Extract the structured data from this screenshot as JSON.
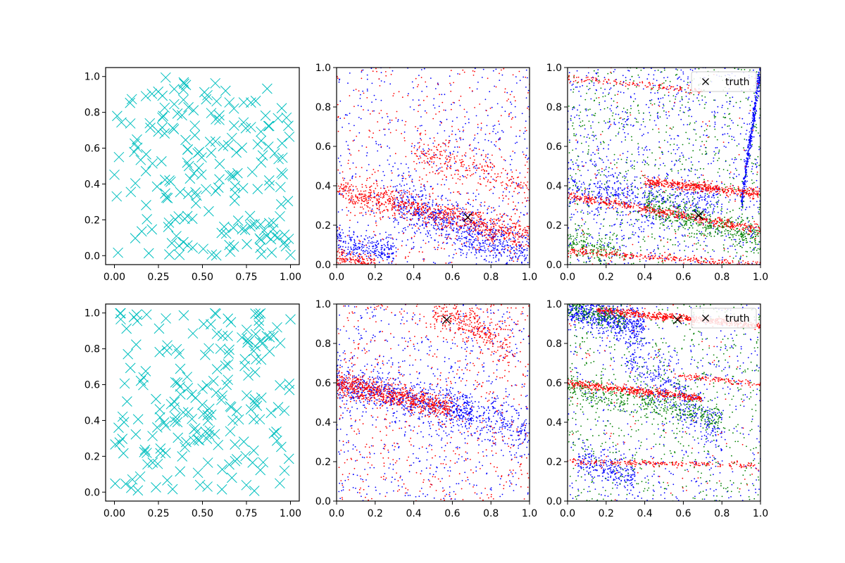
{
  "colors": {
    "cyan": "#00bfbf",
    "red": "#ff0000",
    "blue": "#0000ff",
    "green": "#008000",
    "truth": "#000000"
  },
  "chart_data": [
    {
      "type": "scatter",
      "id": "a1",
      "marker": "x",
      "xlim": [
        -0.05,
        1.05
      ],
      "ylim": [
        -0.05,
        1.05
      ],
      "xticks": [
        "0.00",
        "0.25",
        "0.50",
        "0.75",
        "1.00"
      ],
      "yticks": [
        "0.0",
        "0.2",
        "0.4",
        "0.6",
        "0.8",
        "1.0"
      ],
      "xtick_values": [
        0,
        0.25,
        0.5,
        0.75,
        1.0
      ],
      "ytick_values": [
        0,
        0.2,
        0.4,
        0.6,
        0.8,
        1.0
      ],
      "series": [
        {
          "name": "samples",
          "color": "cyan",
          "n": 200,
          "distribution": "uniform"
        }
      ]
    },
    {
      "type": "scatter",
      "id": "a2",
      "marker": "dot",
      "xlim": [
        0,
        1
      ],
      "ylim": [
        0,
        1
      ],
      "xticks": [
        "0.0",
        "0.2",
        "0.4",
        "0.6",
        "0.8",
        "1.0"
      ],
      "yticks": [
        "0.0",
        "0.2",
        "0.4",
        "0.6",
        "0.8",
        "1.0"
      ],
      "xtick_values": [
        0,
        0.2,
        0.4,
        0.6,
        0.8,
        1.0
      ],
      "ytick_values": [
        0,
        0.2,
        0.4,
        0.6,
        0.8,
        1.0
      ],
      "truth": {
        "x": 0.68,
        "y": 0.24
      },
      "series": [
        {
          "name": "blue",
          "color": "blue",
          "n": 1600,
          "bands": [
            {
              "x0": 0.3,
              "x1": 1.0,
              "y0": 0.32,
              "y1": 0.05,
              "spread": 0.06,
              "w": 0.5
            },
            {
              "x0": 0.0,
              "x1": 0.3,
              "y0": 0.12,
              "y1": 0.05,
              "spread": 0.04,
              "w": 0.15
            }
          ],
          "uniform": 0.35
        },
        {
          "name": "red",
          "color": "red",
          "n": 1600,
          "bands": [
            {
              "x0": 0.0,
              "x1": 1.0,
              "y0": 0.38,
              "y1": 0.15,
              "spread": 0.035,
              "w": 0.55
            },
            {
              "x0": 0.4,
              "x1": 1.0,
              "y0": 0.58,
              "y1": 0.38,
              "spread": 0.05,
              "w": 0.15
            },
            {
              "x0": 0.0,
              "x1": 0.2,
              "y0": 0.04,
              "y1": 0.0,
              "spread": 0.02,
              "w": 0.07
            }
          ],
          "uniform": 0.23
        }
      ]
    },
    {
      "type": "scatter",
      "id": "a3",
      "marker": "dot",
      "xlim": [
        0,
        1
      ],
      "ylim": [
        0,
        1
      ],
      "xticks": [
        "0.0",
        "0.2",
        "0.4",
        "0.6",
        "0.8",
        "1.0"
      ],
      "yticks": [
        "0.0",
        "0.2",
        "0.4",
        "0.6",
        "0.8",
        "1.0"
      ],
      "xtick_values": [
        0,
        0.2,
        0.4,
        0.6,
        0.8,
        1.0
      ],
      "ytick_values": [
        0,
        0.2,
        0.4,
        0.6,
        0.8,
        1.0
      ],
      "truth": {
        "x": 0.68,
        "y": 0.25
      },
      "legend": {
        "label": "truth",
        "placement": "top-right"
      },
      "series": [
        {
          "name": "blue",
          "color": "blue",
          "n": 1700,
          "bands": [
            {
              "x0": 0.0,
              "x1": 0.8,
              "y0": 0.38,
              "y1": 0.3,
              "spread": 0.05,
              "w": 0.25
            },
            {
              "x0": 0.9,
              "x1": 1.0,
              "y0": 0.3,
              "y1": 1.0,
              "spread": 0.03,
              "w": 0.2
            }
          ],
          "uniform": 0.55
        },
        {
          "name": "green",
          "color": "green",
          "n": 1300,
          "bands": [
            {
              "x0": 0.4,
              "x1": 1.0,
              "y0": 0.3,
              "y1": 0.13,
              "spread": 0.04,
              "w": 0.35
            },
            {
              "x0": 0.0,
              "x1": 0.3,
              "y0": 0.12,
              "y1": 0.05,
              "spread": 0.04,
              "w": 0.15
            }
          ],
          "uniform": 0.5
        },
        {
          "name": "red",
          "color": "red",
          "n": 1400,
          "bands": [
            {
              "x0": 0.0,
              "x1": 1.0,
              "y0": 0.35,
              "y1": 0.18,
              "spread": 0.012,
              "w": 0.32
            },
            {
              "x0": 0.4,
              "x1": 1.0,
              "y0": 0.42,
              "y1": 0.36,
              "spread": 0.012,
              "w": 0.3
            },
            {
              "x0": 0.0,
              "x1": 0.7,
              "y0": 0.95,
              "y1": 0.88,
              "spread": 0.01,
              "w": 0.1
            },
            {
              "x0": 0.0,
              "x1": 1.0,
              "y0": 0.07,
              "y1": 0.0,
              "spread": 0.01,
              "w": 0.2
            }
          ],
          "uniform": 0.08
        }
      ]
    },
    {
      "type": "scatter",
      "id": "b1",
      "marker": "x",
      "xlim": [
        -0.05,
        1.05
      ],
      "ylim": [
        -0.05,
        1.05
      ],
      "xticks": [
        "0.00",
        "0.25",
        "0.50",
        "0.75",
        "1.00"
      ],
      "yticks": [
        "0.0",
        "0.2",
        "0.4",
        "0.6",
        "0.8",
        "1.0"
      ],
      "xtick_values": [
        0,
        0.25,
        0.5,
        0.75,
        1.0
      ],
      "ytick_values": [
        0,
        0.2,
        0.4,
        0.6,
        0.8,
        1.0
      ],
      "series": [
        {
          "name": "samples",
          "color": "cyan",
          "n": 200,
          "distribution": "uniform"
        }
      ]
    },
    {
      "type": "scatter",
      "id": "b2",
      "marker": "dot",
      "xlim": [
        0,
        1
      ],
      "ylim": [
        0,
        1
      ],
      "xticks": [
        "0.0",
        "0.2",
        "0.4",
        "0.6",
        "0.8",
        "1.0"
      ],
      "yticks": [
        "0.0",
        "0.2",
        "0.4",
        "0.6",
        "0.8",
        "1.0"
      ],
      "xtick_values": [
        0,
        0.2,
        0.4,
        0.6,
        0.8,
        1.0
      ],
      "ytick_values": [
        0,
        0.2,
        0.4,
        0.6,
        0.8,
        1.0
      ],
      "truth": {
        "x": 0.57,
        "y": 0.92
      },
      "series": [
        {
          "name": "blue",
          "color": "blue",
          "n": 1600,
          "bands": [
            {
              "x0": 0.0,
              "x1": 0.7,
              "y0": 0.6,
              "y1": 0.45,
              "spread": 0.05,
              "w": 0.45
            },
            {
              "x0": 0.6,
              "x1": 1.0,
              "y0": 0.5,
              "y1": 0.35,
              "spread": 0.06,
              "w": 0.15
            }
          ],
          "uniform": 0.4
        },
        {
          "name": "red",
          "color": "red",
          "n": 1600,
          "bands": [
            {
              "x0": 0.0,
              "x1": 0.6,
              "y0": 0.6,
              "y1": 0.47,
              "spread": 0.03,
              "w": 0.45
            },
            {
              "x0": 0.5,
              "x1": 0.9,
              "y0": 0.98,
              "y1": 0.78,
              "spread": 0.05,
              "w": 0.2
            }
          ],
          "uniform": 0.35
        }
      ]
    },
    {
      "type": "scatter",
      "id": "b3",
      "marker": "dot",
      "xlim": [
        0,
        1
      ],
      "ylim": [
        0,
        1
      ],
      "xticks": [
        "0.0",
        "0.2",
        "0.4",
        "0.6",
        "0.8",
        "1.0"
      ],
      "yticks": [
        "0.0",
        "0.2",
        "0.4",
        "0.6",
        "0.8",
        "1.0"
      ],
      "xtick_values": [
        0,
        0.2,
        0.4,
        0.6,
        0.8,
        1.0
      ],
      "ytick_values": [
        0,
        0.2,
        0.4,
        0.6,
        0.8,
        1.0
      ],
      "truth": {
        "x": 0.57,
        "y": 0.92
      },
      "legend": {
        "label": "truth",
        "placement": "top-right"
      },
      "series": [
        {
          "name": "blue",
          "color": "blue",
          "n": 1700,
          "bands": [
            {
              "x0": 0.0,
              "x1": 0.4,
              "y0": 0.97,
              "y1": 0.88,
              "spread": 0.04,
              "w": 0.35
            },
            {
              "x0": 0.3,
              "x1": 0.8,
              "y0": 0.75,
              "y1": 0.35,
              "spread": 0.07,
              "w": 0.25
            },
            {
              "x0": 0.05,
              "x1": 0.35,
              "y0": 0.2,
              "y1": 0.12,
              "spread": 0.04,
              "w": 0.12
            }
          ],
          "uniform": 0.28
        },
        {
          "name": "green",
          "color": "green",
          "n": 1300,
          "bands": [
            {
              "x0": 0.0,
              "x1": 0.8,
              "y0": 0.58,
              "y1": 0.42,
              "spread": 0.04,
              "w": 0.35
            },
            {
              "x0": 0.0,
              "x1": 0.3,
              "y0": 0.98,
              "y1": 0.92,
              "spread": 0.03,
              "w": 0.15
            }
          ],
          "uniform": 0.5
        },
        {
          "name": "red",
          "color": "red",
          "n": 1400,
          "bands": [
            {
              "x0": 0.15,
              "x1": 1.0,
              "y0": 0.97,
              "y1": 0.89,
              "spread": 0.01,
              "w": 0.4
            },
            {
              "x0": 0.0,
              "x1": 0.7,
              "y0": 0.6,
              "y1": 0.52,
              "spread": 0.01,
              "w": 0.3
            },
            {
              "x0": 0.55,
              "x1": 1.0,
              "y0": 0.64,
              "y1": 0.59,
              "spread": 0.008,
              "w": 0.08
            },
            {
              "x0": 0.0,
              "x1": 1.0,
              "y0": 0.2,
              "y1": 0.18,
              "spread": 0.008,
              "w": 0.14
            }
          ],
          "uniform": 0.08
        }
      ]
    }
  ]
}
